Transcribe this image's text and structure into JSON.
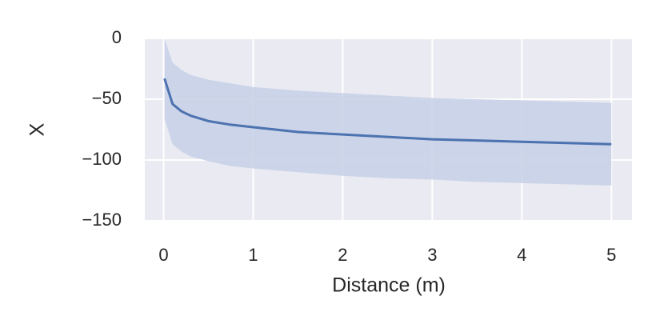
{
  "chart_data": {
    "type": "line",
    "xlabel": "Distance (m)",
    "ylabel": "X",
    "x": [
      0.01,
      0.1,
      0.2,
      0.3,
      0.5,
      0.75,
      1,
      1.5,
      2,
      2.5,
      3,
      3.5,
      4,
      4.5,
      5
    ],
    "series": [
      {
        "color": "#4c72b0",
        "values": [
          -33,
          -54,
          -60,
          -63.5,
          -68,
          -71,
          -73,
          -77,
          -79,
          -81,
          -83,
          -84,
          -85,
          -86,
          -87
        ],
        "band": {
          "color": "#c5d0e6",
          "upper": [
            0,
            -20,
            -26,
            -30,
            -34,
            -37,
            -40,
            -43,
            -45,
            -47,
            -49,
            -50,
            -51,
            -52,
            -53
          ],
          "lower": [
            -66,
            -87,
            -93,
            -97,
            -101,
            -105,
            -107,
            -110,
            -113,
            -115,
            -116,
            -118,
            -119,
            -120,
            -121
          ]
        }
      }
    ],
    "xlim": [
      -0.21,
      5.23
    ],
    "ylim": [
      -150,
      0
    ],
    "xticks": [
      0,
      1,
      2,
      3,
      4,
      5
    ],
    "yticks": [
      0,
      {
        "value": -50,
        "label": "−50"
      },
      {
        "value": -100,
        "label": "−100"
      },
      {
        "value": -150,
        "label": "−150"
      }
    ],
    "grid": true,
    "background": "#eaeaf2"
  }
}
